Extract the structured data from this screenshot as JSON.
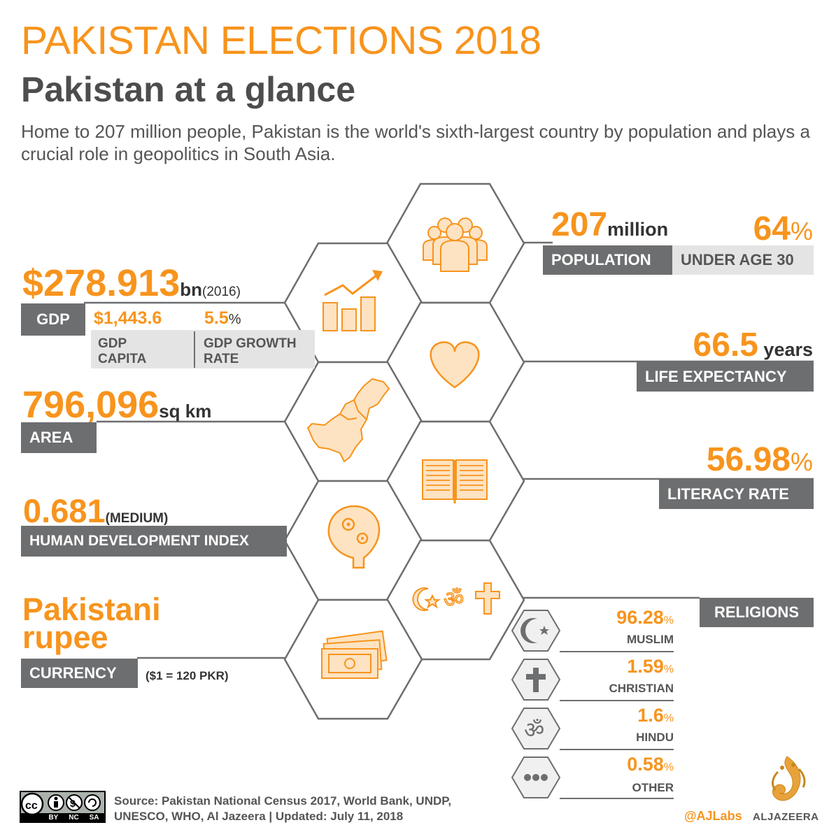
{
  "header": {
    "title": "PAKISTAN ELECTIONS 2018",
    "subtitle": "Pakistan at a glance",
    "intro": "Home to 207 million people, Pakistan is the world's sixth-largest country by population and plays a crucial role in geopolitics in South Asia."
  },
  "population": {
    "value": "207",
    "unit": "million",
    "label": "POPULATION",
    "young_value": "64",
    "young_unit": "%",
    "young_label": "UNDER AGE 30"
  },
  "gdp": {
    "value": "$278.913",
    "unit": "bn",
    "year": "(2016)",
    "label": "GDP",
    "per_capita_value": "$1,443.6",
    "per_capita_label_1": "GDP",
    "per_capita_label_2": "CAPITA",
    "growth_value": "5.5",
    "growth_unit": "%",
    "growth_label_1": "GDP GROWTH",
    "growth_label_2": "RATE"
  },
  "life": {
    "value": "66.5",
    "unit": " years",
    "label": "LIFE EXPECTANCY"
  },
  "area": {
    "value": "796,096",
    "unit": "sq km",
    "label": "AREA"
  },
  "literacy": {
    "value": "56.98",
    "unit": "%",
    "label": "LITERACY RATE"
  },
  "hdi": {
    "value": "0.681",
    "note": "(MEDIUM)",
    "label": "HUMAN DEVELOPMENT INDEX"
  },
  "currency": {
    "value_line1": "Pakistani",
    "value_line2": "rupee",
    "label": "CURRENCY",
    "note": "($1 = 120 PKR)"
  },
  "religions": {
    "label": "RELIGIONS",
    "items": [
      {
        "value": "96.28",
        "unit": "%",
        "name": "MUSLIM",
        "icon": "crescent-star-icon"
      },
      {
        "value": "1.59",
        "unit": "%",
        "name": "CHRISTIAN",
        "icon": "cross-icon"
      },
      {
        "value": "1.6",
        "unit": "%",
        "name": "HINDU",
        "icon": "om-icon"
      },
      {
        "value": "0.58",
        "unit": "%",
        "name": "OTHER",
        "icon": "ellipsis-icon"
      }
    ]
  },
  "footer": {
    "license": [
      "BY",
      "NC",
      "SA"
    ],
    "source_line1": "Source: Pakistan National Census 2017, World Bank, UNDP,",
    "source_line2": "UNESCO, WHO, Al Jazeera |  Updated: July 11, 2018",
    "handle": "@AJLabs",
    "brand": "ALJAZEERA"
  },
  "colors": {
    "accent": "#f7941d",
    "icon_fill": "#fde3c2",
    "label_bg": "#6d6e70",
    "line": "#6d6e70"
  }
}
